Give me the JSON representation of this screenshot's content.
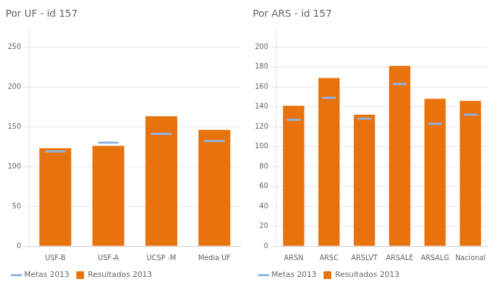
{
  "chart_data": [
    {
      "type": "bar",
      "title": "Por UF - id 157",
      "categories": [
        "USF-B",
        "USF-A",
        "UCSP -M",
        "Média UF"
      ],
      "series": [
        {
          "name": "Resultados 2013",
          "type": "bar",
          "color": "#E8720C",
          "values": [
            123,
            126,
            163,
            146
          ]
        },
        {
          "name": "Metas 2013",
          "type": "line",
          "color": "#8DB4E2",
          "marker": "dash",
          "line_style": "none",
          "values": [
            119,
            130,
            141,
            132
          ]
        }
      ],
      "ylim": [
        0,
        275
      ],
      "yticks": [
        0,
        50,
        100,
        150,
        200,
        250
      ],
      "grid": true,
      "legend": "bottom"
    },
    {
      "type": "bar",
      "title": "Por ARS - id 157",
      "categories": [
        "ARSN",
        "ARSC",
        "ARSLVT",
        "ARSALE",
        "ARSALG",
        "Nacional"
      ],
      "series": [
        {
          "name": "Resultados 2013",
          "type": "bar",
          "color": "#E8720C",
          "values": [
            141,
            169,
            132,
            181,
            148,
            146
          ]
        },
        {
          "name": "Metas 2013",
          "type": "line",
          "color": "#8DB4E2",
          "marker": "dash",
          "line_style": "none",
          "values": [
            127,
            149,
            128,
            163,
            123,
            132
          ]
        }
      ],
      "ylim": [
        0,
        220
      ],
      "yticks": [
        0,
        20,
        40,
        60,
        80,
        100,
        120,
        140,
        160,
        180,
        200
      ],
      "grid": true,
      "legend": "bottom"
    }
  ]
}
